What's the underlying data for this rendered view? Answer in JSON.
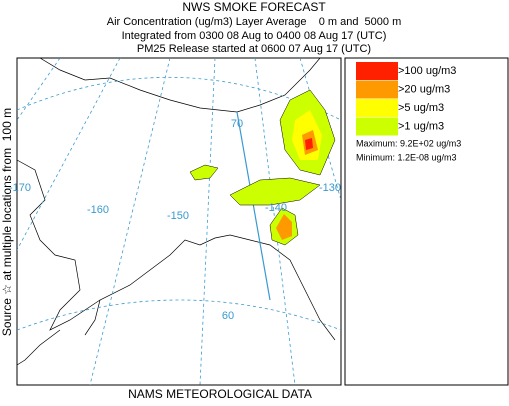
{
  "header": {
    "title": "NWS SMOKE FORECAST",
    "lines": [
      "Air Concentration (ug/m3) Layer Average    0 m and  5000 m",
      "Integrated from 0300 08 Aug to 0400 08 Aug 17 (UTC)",
      "PM25 Release started at 0600 07 Aug 17 (UTC)"
    ]
  },
  "side_label": "Source ☆ at multiple locations from  100 m",
  "footer": "NAMS METEOROLOGICAL DATA",
  "map": {
    "grid_labels": [
      "70",
      "-170",
      "-160",
      "-150",
      "-140",
      "-130",
      "60"
    ]
  },
  "legend": {
    "entries": [
      {
        "label": ">100 ug/m3",
        "color": "#ff2000"
      },
      {
        "label": ">20 ug/m3",
        "color": "#ff9900"
      },
      {
        "label": ">5 ug/m3",
        "color": "#ffff00"
      },
      {
        "label": ">1 ug/m3",
        "color": "#ccff00"
      }
    ],
    "maximum": "Maximum: 9.2E+02 ug/m3",
    "minimum": "Minimum: 1.2E-08 ug/m3"
  }
}
